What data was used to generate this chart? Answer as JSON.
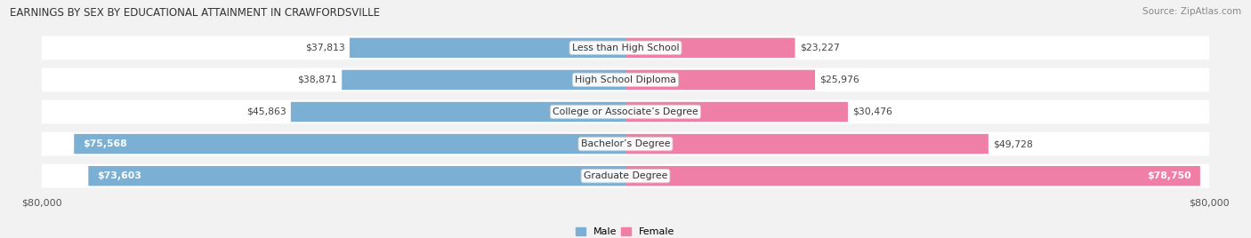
{
  "title": "EARNINGS BY SEX BY EDUCATIONAL ATTAINMENT IN CRAWFORDSVILLE",
  "source": "Source: ZipAtlas.com",
  "categories": [
    "Less than High School",
    "High School Diploma",
    "College or Associate’s Degree",
    "Bachelor’s Degree",
    "Graduate Degree"
  ],
  "male_values": [
    37813,
    38871,
    45863,
    75568,
    73603
  ],
  "female_values": [
    23227,
    25976,
    30476,
    49728,
    78750
  ],
  "max_value": 80000,
  "male_color": "#7bafd4",
  "female_color": "#f07fa8",
  "male_inside_threshold": 55000,
  "female_inside_threshold": 55000,
  "background_color": "#f2f2f2",
  "row_bg_color": "#e8e8ee",
  "row_alt_color": "#dddde8",
  "white_color": "#ffffff",
  "legend_male": "Male",
  "legend_female": "Female",
  "label_inside_color": "#ffffff",
  "label_outside_color": "#444444"
}
